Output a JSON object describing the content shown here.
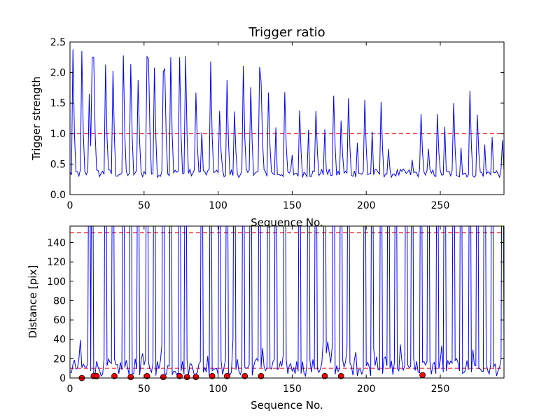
{
  "chart_data": [
    {
      "type": "line",
      "title": "Trigger ratio",
      "xlabel": "Sequence No.",
      "ylabel": "Trigger strength",
      "xlim": [
        0,
        293
      ],
      "ylim": [
        0,
        2.5
      ],
      "xticks": [
        0,
        50,
        100,
        150,
        200,
        250
      ],
      "yticks": [
        "0.0",
        "0.5",
        "1.0",
        "1.5",
        "2.0",
        "2.5"
      ],
      "ytick_values": [
        0,
        0.5,
        1.0,
        1.5,
        2.0,
        2.5
      ],
      "threshold": 1.0,
      "threshold_color": "#ff0000",
      "line_color": "#0000ff",
      "series": [
        {
          "peaks": [
            [
              2,
              2.38
            ],
            [
              8,
              2.35
            ],
            [
              13,
              1.65
            ],
            [
              15,
              2.25
            ],
            [
              16,
              2.25
            ],
            [
              24,
              2.13
            ],
            [
              29,
              2.03
            ],
            [
              36,
              2.28
            ],
            [
              41,
              2.14
            ],
            [
              46,
              1.88
            ],
            [
              52,
              2.26
            ],
            [
              53,
              2.22
            ],
            [
              57,
              2.08
            ],
            [
              63,
              2.02
            ],
            [
              64,
              2.06
            ],
            [
              68,
              2.25
            ],
            [
              74,
              2.25
            ],
            [
              78,
              2.27
            ],
            [
              85,
              1.67
            ],
            [
              89,
              1.02
            ],
            [
              95,
              2.18
            ],
            [
              101,
              1.37
            ],
            [
              106,
              1.88
            ],
            [
              111,
              1.36
            ],
            [
              117,
              2.11
            ],
            [
              122,
              1.76
            ],
            [
              128,
              2.09
            ],
            [
              129,
              1.85
            ],
            [
              134,
              1.67
            ],
            [
              139,
              1.1
            ],
            [
              145,
              1.68
            ],
            [
              150,
              0.65
            ],
            [
              155,
              1.38
            ],
            [
              161,
              1.06
            ],
            [
              166,
              1.37
            ],
            [
              172,
              1.07
            ],
            [
              178,
              1.62
            ],
            [
              183,
              1.21
            ],
            [
              188,
              1.58
            ],
            [
              194,
              0.85
            ],
            [
              199,
              1.55
            ],
            [
              204,
              1.03
            ],
            [
              210,
              1.52
            ],
            [
              215,
              0.75
            ],
            [
              231,
              0.57
            ],
            [
              237,
              1.32
            ],
            [
              242,
              0.75
            ],
            [
              248,
              1.32
            ],
            [
              253,
              1.11
            ],
            [
              259,
              1.5
            ],
            [
              264,
              0.77
            ],
            [
              270,
              1.7
            ],
            [
              275,
              1.31
            ],
            [
              280,
              0.82
            ],
            [
              285,
              0.94
            ],
            [
              292,
              0.89
            ]
          ],
          "baseline": [
            0.28,
            0.42
          ]
        }
      ]
    },
    {
      "type": "line",
      "title": "",
      "xlabel": "Sequence No.",
      "ylabel": "Distance [pix]",
      "xlim": [
        0,
        293
      ],
      "ylim": [
        0,
        157
      ],
      "xticks": [
        0,
        50,
        100,
        150,
        200,
        250
      ],
      "yticks": [
        0,
        20,
        40,
        60,
        80,
        100,
        120,
        140
      ],
      "thresholds": [
        150,
        10
      ],
      "threshold_color": "#ff0000",
      "line_color": "#0000ff",
      "marker_color": "#ff0000",
      "spikes": [
        13,
        15,
        24,
        29,
        36,
        41,
        46,
        52,
        57,
        63,
        68,
        74,
        78,
        89,
        95,
        101,
        106,
        111,
        117,
        122,
        128,
        134,
        139,
        145,
        155,
        161,
        166,
        172,
        178,
        183,
        188,
        199,
        204,
        210,
        215,
        220,
        227,
        231,
        237,
        242,
        248,
        253,
        259,
        264,
        270,
        275,
        280,
        285,
        292
      ],
      "red_points": [
        [
          8,
          0
        ],
        [
          16,
          2
        ],
        [
          18,
          2
        ],
        [
          30,
          2
        ],
        [
          41,
          1
        ],
        [
          52,
          2
        ],
        [
          63,
          1
        ],
        [
          74,
          2
        ],
        [
          79,
          1
        ],
        [
          85,
          1
        ],
        [
          96,
          2
        ],
        [
          106,
          2
        ],
        [
          118,
          2
        ],
        [
          129,
          2
        ],
        [
          172,
          2
        ],
        [
          183,
          2
        ],
        [
          238,
          3
        ]
      ]
    }
  ]
}
